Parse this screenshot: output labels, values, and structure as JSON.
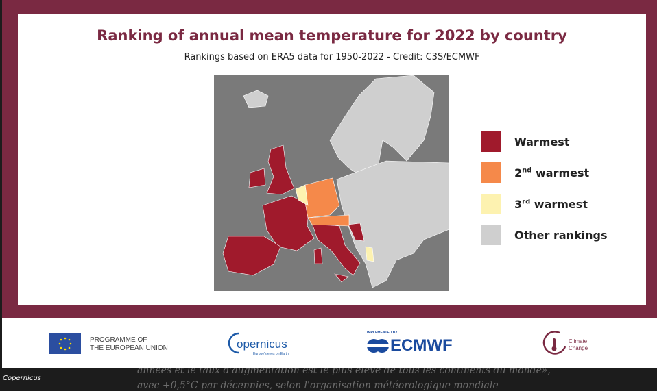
{
  "background_text": [
    "années et le taux d'augmentation est le plus élevé de tous les continents du monde»,",
    "avec +0,5°C par décennies, selon l'organisation météorologique mondiale"
  ],
  "infographic": {
    "title": "Ranking of annual mean temperature for 2022 by country",
    "subtitle": "Rankings based on ERA5 data for 1950-2022 - Credit: C3S/ECMWF",
    "legend": [
      {
        "text": "Warmest",
        "color": "#a01a2c"
      },
      {
        "text": "2",
        "sup": "nd",
        "rest": " warmest",
        "color": "#f5894a"
      },
      {
        "text": "3",
        "sup": "rd",
        "rest": " warmest",
        "color": "#fdf2b0"
      },
      {
        "text": "Other rankings",
        "color": "#cfcfcf"
      }
    ],
    "footer": {
      "eu": [
        "PROGRAMME OF",
        "THE EUROPEAN UNION"
      ],
      "copernicus": {
        "name": "opernicus",
        "tagline": "Europe's eyes on Earth"
      },
      "ecmwf": {
        "pre": "IMPLEMENTED BY",
        "name": "ECMWF"
      },
      "climate": [
        "Climate",
        "Change"
      ]
    }
  },
  "caption": "Copernicus"
}
